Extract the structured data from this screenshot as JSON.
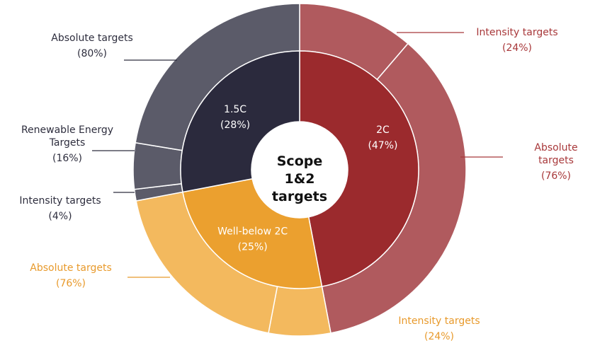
{
  "chart_data": {
    "type": "sunburst",
    "title": "Scope 1&2 targets",
    "categories": [
      "2C",
      "Well-below 2C",
      "1.5C"
    ],
    "values": [
      47,
      25,
      28
    ],
    "value_labels": [
      "(47%)",
      "(25%)",
      "(28%)"
    ],
    "colors": [
      "#9b2a2d",
      "#eba02f",
      "#2b2a3d"
    ],
    "children": [
      {
        "categories": [
          "Intensity targets",
          "Absolute targets"
        ],
        "values": [
          24,
          76
        ],
        "value_labels": [
          "(24%)",
          "(76%)"
        ],
        "colors": [
          "#b05a5e",
          "#b05a5e"
        ]
      },
      {
        "categories": [
          "Intensity targets",
          "Absolute targets"
        ],
        "values": [
          24,
          76
        ],
        "value_labels": [
          "(24%)",
          "(76%)"
        ],
        "colors": [
          "#f3b95e",
          "#f3b95e"
        ]
      },
      {
        "categories": [
          "Intensity targets",
          "Renewable Energy Targets",
          "Absolute targets"
        ],
        "values": [
          4,
          16,
          80
        ],
        "value_labels": [
          "(4%)",
          "(16%)",
          "(80%)"
        ],
        "colors": [
          "#5b5b69",
          "#5b5b69",
          "#5b5b69"
        ]
      }
    ]
  }
}
